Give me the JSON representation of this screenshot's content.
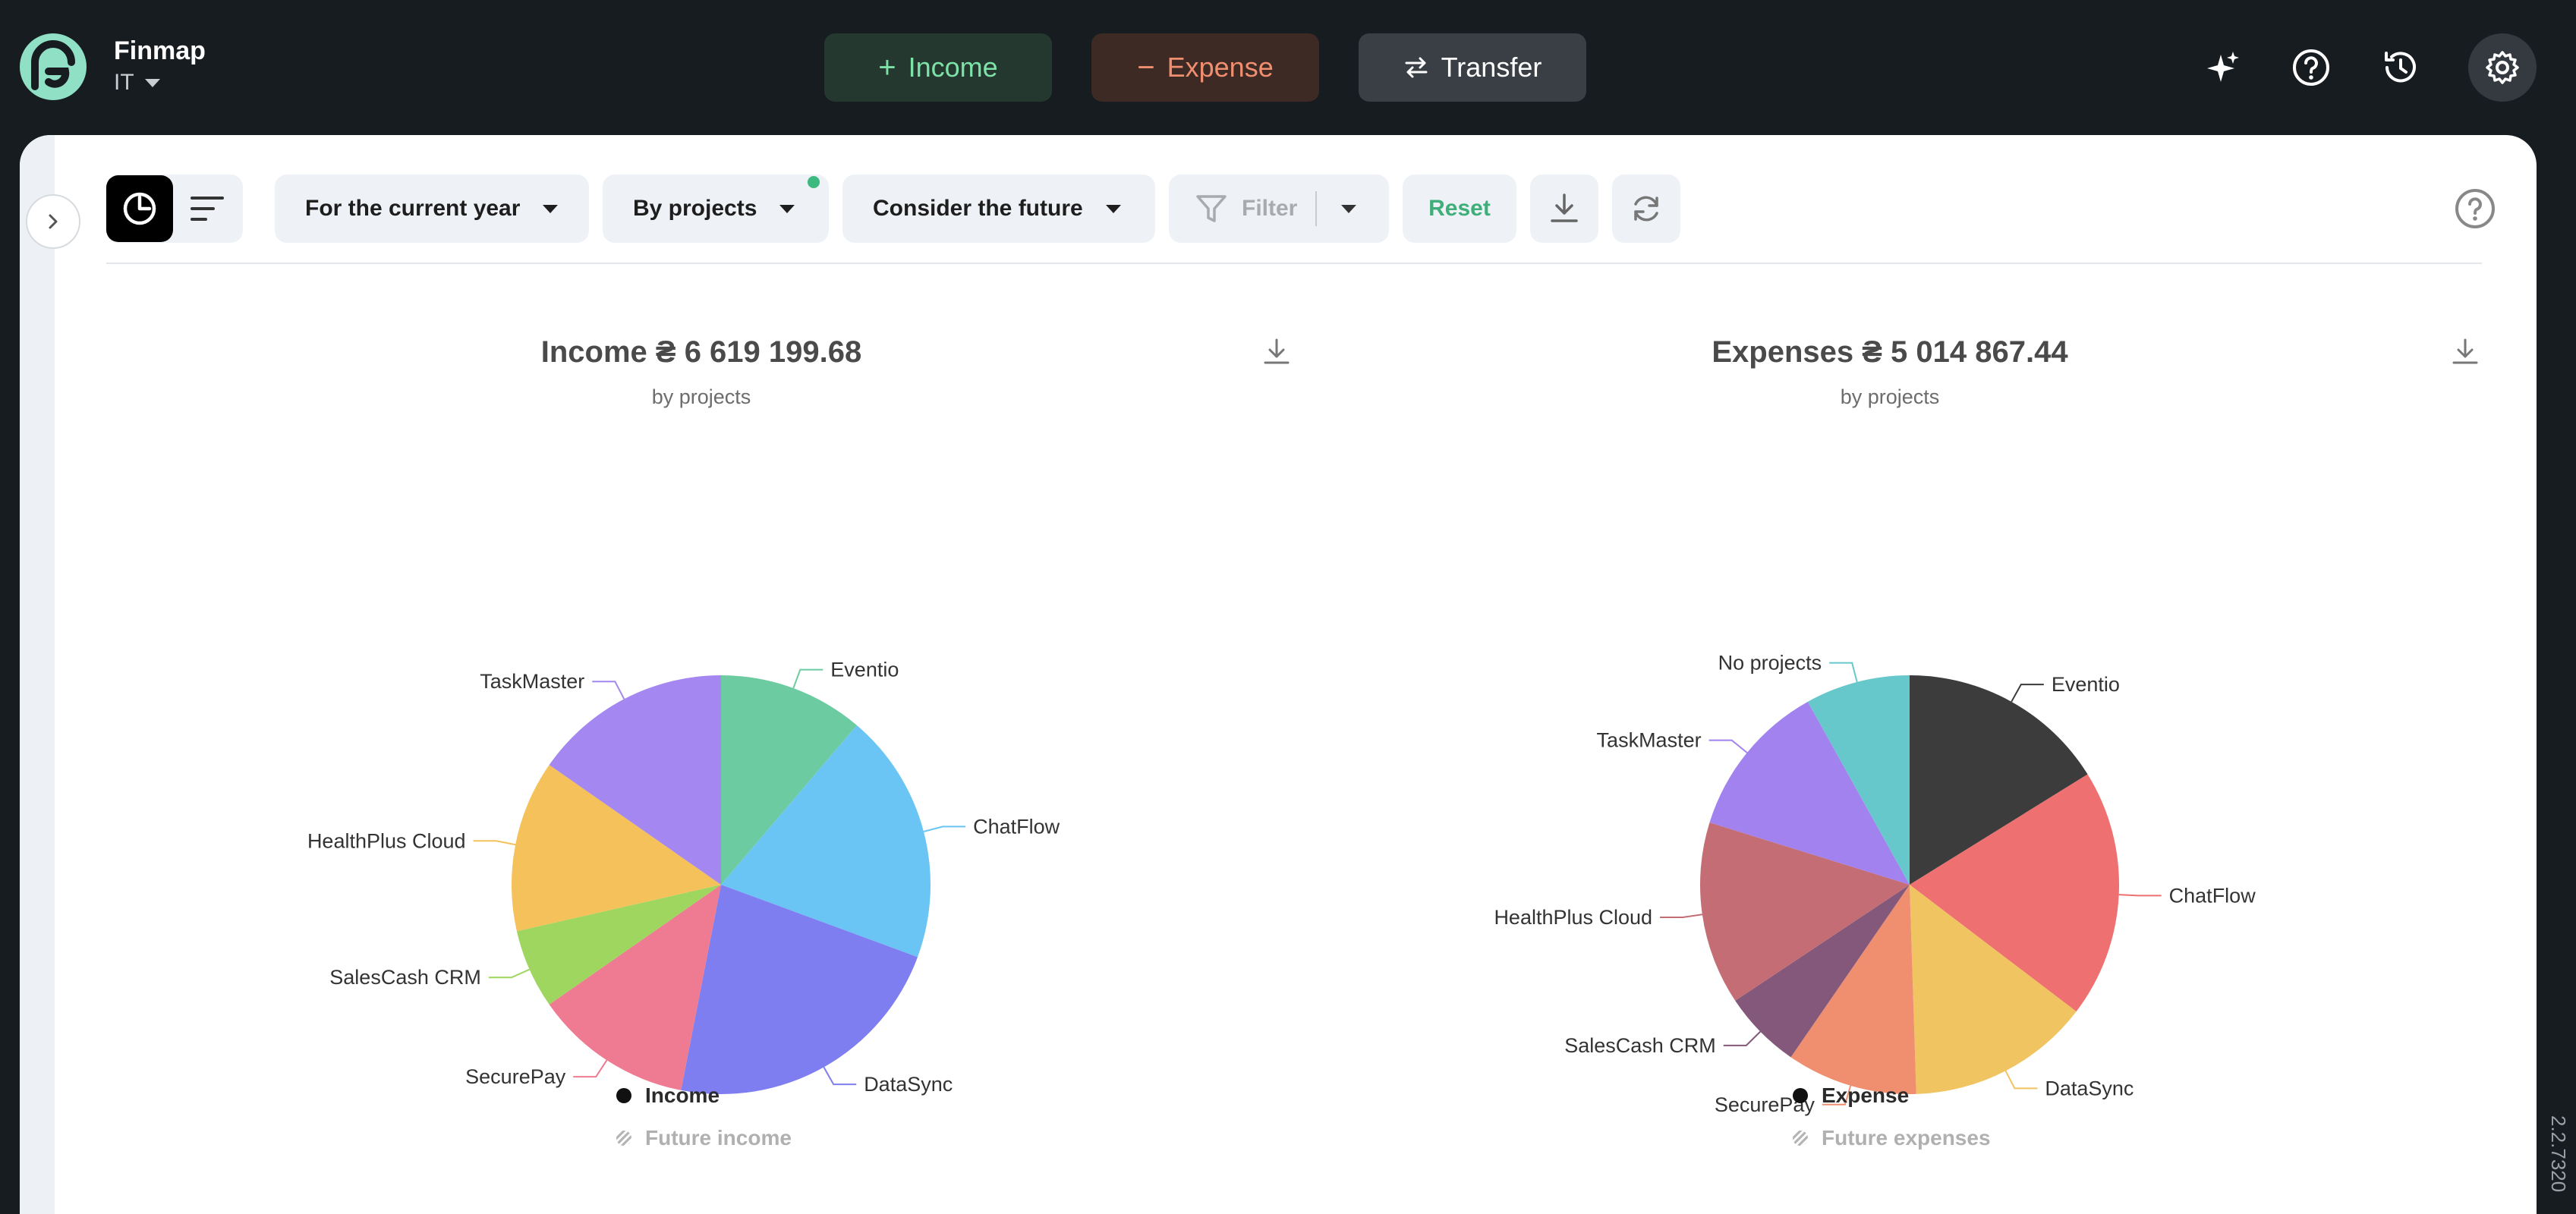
{
  "header": {
    "brand_name": "Finmap",
    "workspace": "IT",
    "buttons": {
      "income": "Income",
      "expense": "Expense",
      "transfer": "Transfer"
    }
  },
  "toolbar": {
    "period": "For the current year",
    "grouping": "By projects",
    "future": "Consider the future",
    "filter": "Filter",
    "reset": "Reset"
  },
  "income_panel": {
    "title": "Income ₴ 6 619 199.68",
    "subtitle": "by projects",
    "legend": [
      "Income",
      "Future income"
    ]
  },
  "expense_panel": {
    "title": "Expenses ₴ 5 014 867.44",
    "subtitle": "by projects",
    "legend": [
      "Expense",
      "Future expenses"
    ]
  },
  "chart_data": [
    {
      "type": "pie",
      "title": "Income ₴ 6 619 199.68",
      "subtitle": "by projects",
      "categories": [
        "Eventio",
        "ChatFlow",
        "DataSync",
        "SecurePay",
        "SalesCash CRM",
        "HealthPlus Cloud",
        "TaskMaster"
      ],
      "values": [
        11,
        19,
        22,
        12,
        6,
        13,
        15
      ],
      "colors": [
        "#6ccba1",
        "#6ac5f4",
        "#7f7ef0",
        "#ee7b91",
        "#9ed65f",
        "#f4c15b",
        "#a487f0"
      ],
      "legend": [
        "Income",
        "Future income"
      ],
      "legend_position": "bottom"
    },
    {
      "type": "pie",
      "title": "Expenses ₴ 5 014 867.44",
      "subtitle": "by projects",
      "categories": [
        "Eventio",
        "ChatFlow",
        "DataSync",
        "SecurePay",
        "SalesCash CRM",
        "HealthPlus Cloud",
        "TaskMaster",
        "No projects"
      ],
      "values": [
        16,
        19,
        14,
        10,
        6,
        14,
        12,
        8
      ],
      "colors": [
        "#3c3c3c",
        "#ee7070",
        "#efc461",
        "#f08f6f",
        "#84587a",
        "#c46d74",
        "#a282ef",
        "#67c8cc"
      ],
      "legend": [
        "Expense",
        "Future expenses"
      ],
      "legend_position": "bottom"
    }
  ],
  "version": "2.2.7320"
}
